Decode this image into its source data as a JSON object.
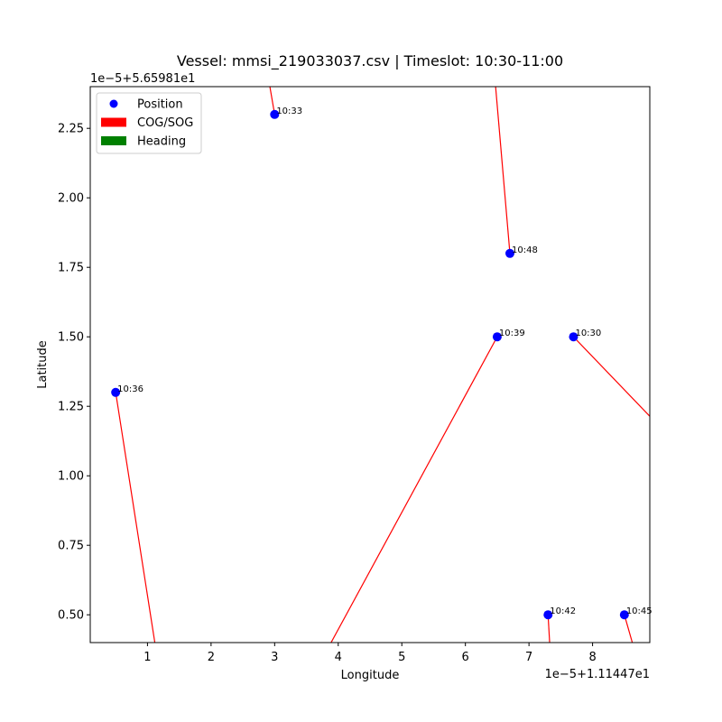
{
  "chart_data": {
    "type": "scatter",
    "title": "Vessel: mmsi_219033037.csv | Timeslot: 10:30-11:00",
    "xlabel": "Longitude",
    "ylabel": "Latitude",
    "x_offset_text": "1e−5+1.11447e1",
    "y_offset_text": "1e−5+5.65981e1",
    "xlim": [
      0.1,
      8.9
    ],
    "ylim": [
      0.4,
      2.4
    ],
    "xticks": [
      1,
      2,
      3,
      4,
      5,
      6,
      7,
      8
    ],
    "xtick_labels": [
      "1",
      "2",
      "3",
      "4",
      "5",
      "6",
      "7",
      "8"
    ],
    "yticks": [
      0.5,
      0.75,
      1.0,
      1.25,
      1.5,
      1.75,
      2.0,
      2.25
    ],
    "ytick_labels": [
      "0.50",
      "0.75",
      "1.00",
      "1.25",
      "1.50",
      "1.75",
      "2.00",
      "2.25"
    ],
    "grid": false,
    "legend_position": "top-left",
    "legend": [
      {
        "label": "Position",
        "kind": "marker",
        "color": "#0000ff"
      },
      {
        "label": "COG/SOG",
        "kind": "patch",
        "color": "#ff0000"
      },
      {
        "label": "Heading",
        "kind": "patch",
        "color": "#008000"
      }
    ],
    "position_color": "#0000ff",
    "cog_color": "#ff0000",
    "points": [
      {
        "time": "10:30",
        "x": 7.7,
        "y": 1.5
      },
      {
        "time": "10:33",
        "x": 3.0,
        "y": 2.3
      },
      {
        "time": "10:36",
        "x": 0.5,
        "y": 1.3
      },
      {
        "time": "10:39",
        "x": 6.5,
        "y": 1.5
      },
      {
        "time": "10:42",
        "x": 7.3,
        "y": 0.5
      },
      {
        "time": "10:45",
        "x": 8.5,
        "y": 0.5
      },
      {
        "time": "10:48",
        "x": 6.7,
        "y": 1.8
      }
    ],
    "cog_vectors": [
      {
        "x1": 7.7,
        "y1": 1.5,
        "x2": 9.8,
        "y2": 1.0
      },
      {
        "x1": 3.0,
        "y1": 2.3,
        "x2": 2.85,
        "y2": 2.5
      },
      {
        "x1": 0.5,
        "y1": 1.3,
        "x2": 1.15,
        "y2": 0.35
      },
      {
        "x1": 6.5,
        "y1": 1.5,
        "x2": 3.65,
        "y2": 0.3
      },
      {
        "x1": 7.3,
        "y1": 0.5,
        "x2": 7.35,
        "y2": 0.3
      },
      {
        "x1": 8.5,
        "y1": 0.5,
        "x2": 8.75,
        "y2": 0.3
      },
      {
        "x1": 6.7,
        "y1": 1.8,
        "x2": 6.4,
        "y2": 2.6
      }
    ]
  }
}
